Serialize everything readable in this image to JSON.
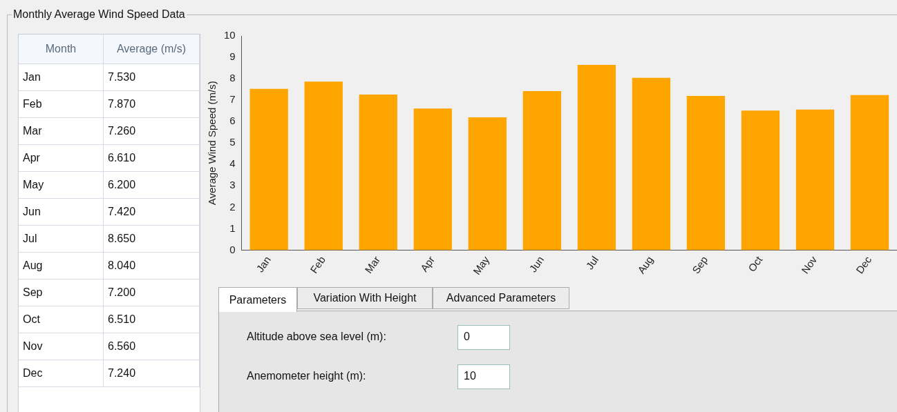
{
  "chart_data": [
    {
      "type": "other",
      "annotations": [
        "Month",
        "Average (m/s)",
        "Jan",
        "7.530",
        "Feb",
        "7.870",
        "Mar",
        "7.260",
        "Apr",
        "6.610",
        "May",
        "6.200",
        "Jun",
        "7.420",
        "Jul",
        "8.650",
        "Aug",
        "8.040",
        "Sep",
        "7.200",
        "Oct",
        "6.510",
        "Nov",
        "6.560",
        "Dec",
        "7.240"
      ]
    },
    {
      "type": "bar",
      "title": "Monthly Average Wind Speed Data",
      "ylabel": "Average Wind Speed (m/s)",
      "categories": [
        "Jan",
        "Feb",
        "Mar",
        "Apr",
        "May",
        "Jun",
        "Jul",
        "Aug",
        "Sep",
        "Oct",
        "Nov",
        "Dec"
      ],
      "values": [
        7.53,
        7.87,
        7.26,
        6.61,
        6.2,
        7.42,
        8.65,
        8.04,
        7.2,
        6.51,
        6.56,
        7.24
      ],
      "color": "#ffa500",
      "ylim": [
        0,
        10
      ],
      "yticks": [
        0,
        1,
        2,
        3,
        4,
        5,
        6,
        7,
        8,
        9,
        10
      ],
      "grid": false,
      "legend": false
    },
    {
      "type": "other",
      "annotations": [
        "Parameters",
        "Variation With Height",
        "Advanced Parameters",
        "Altitude above sea level (m):",
        "0",
        "Anemometer height (m):",
        "10"
      ]
    }
  ]
}
